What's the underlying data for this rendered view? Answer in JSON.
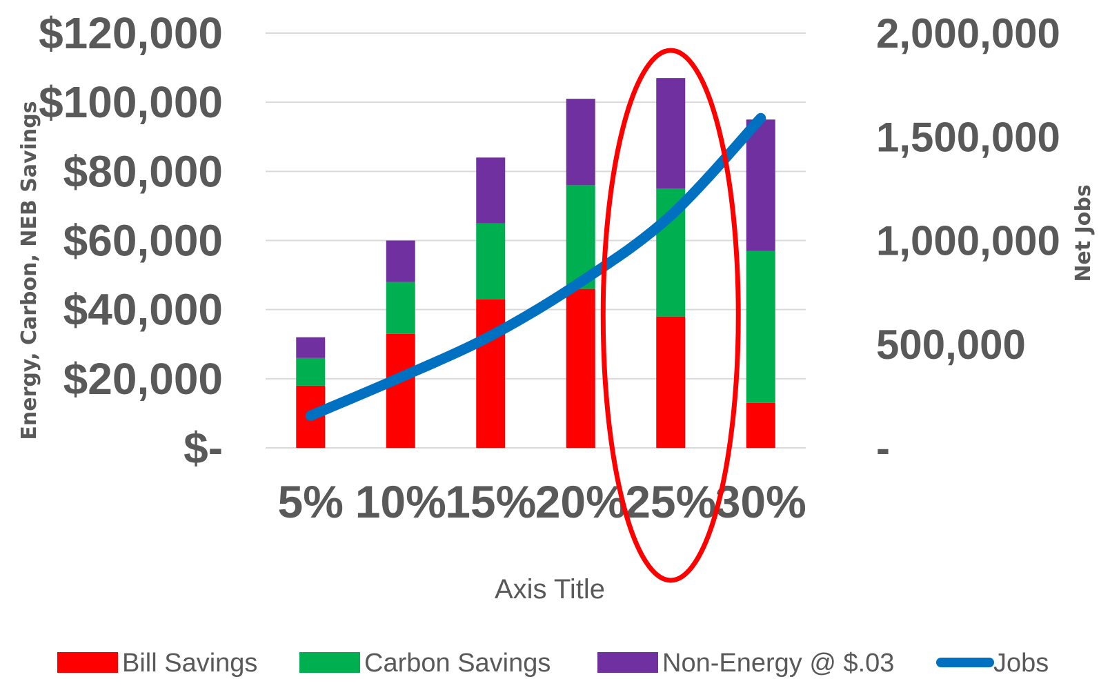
{
  "chart_data": {
    "type": "bar",
    "stacked": true,
    "categories": [
      "5%",
      "10%",
      "15%",
      "20%",
      "25%",
      "30%"
    ],
    "series": [
      {
        "name": "Bill Savings",
        "type": "bar",
        "axis": "left",
        "color": "#ff0000",
        "values": [
          18000,
          33000,
          43000,
          46000,
          38000,
          13000
        ]
      },
      {
        "name": "Carbon Savings",
        "type": "bar",
        "axis": "left",
        "color": "#00b050",
        "values": [
          8000,
          15000,
          22000,
          30000,
          37000,
          44000
        ]
      },
      {
        "name": "Non-Energy @ $.03",
        "type": "bar",
        "axis": "left",
        "color": "#7030a0",
        "values": [
          6000,
          12000,
          19000,
          25000,
          32000,
          38000
        ]
      },
      {
        "name": "Jobs",
        "type": "line",
        "axis": "right",
        "color": "#0070c0",
        "values": [
          155000,
          340000,
          540000,
          800000,
          1120000,
          1590000
        ]
      }
    ],
    "left_axis": {
      "title": "Energy, Carbon, NEB Savings",
      "range": [
        0,
        120000
      ],
      "tick_values": [
        0,
        20000,
        40000,
        60000,
        80000,
        100000,
        120000
      ],
      "tick_labels": [
        "$-",
        "$20,000",
        "$40,000",
        "$60,000",
        "$80,000",
        "$100,000",
        "$120,000"
      ]
    },
    "right_axis": {
      "title": "Net Jobs",
      "range": [
        0,
        2000000
      ],
      "tick_values": [
        0,
        500000,
        1000000,
        1500000,
        2000000
      ],
      "tick_labels": [
        "-",
        "500,000",
        "1,000,000",
        "1,500,000",
        "2,000,000"
      ]
    },
    "xlabel": "Axis Title",
    "grid": true,
    "legend_position": "bottom",
    "highlight": {
      "category": "25%",
      "shape": "ellipse",
      "color": "#ff0000"
    }
  }
}
